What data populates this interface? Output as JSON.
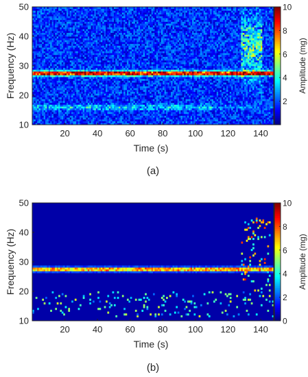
{
  "chart_data": [
    {
      "type": "heatmap",
      "title": "",
      "xlabel": "Time (s)",
      "ylabel": "Frequency (Hz)",
      "colorbar_label": "Amplitude (mg)",
      "colormap": "jet",
      "xlim": [
        0,
        148
      ],
      "ylim": [
        10,
        50
      ],
      "clim": [
        0,
        10
      ],
      "x_ticks": [
        20,
        40,
        60,
        80,
        100,
        120,
        140
      ],
      "y_ticks": [
        10,
        20,
        30,
        40,
        50
      ],
      "colorbar_ticks": [
        2,
        4,
        6,
        8,
        10
      ],
      "time_bins": 148,
      "frequency_bins": 64,
      "grid": false,
      "features": [
        {
          "description": "persistent tonal component",
          "frequency_hz": 27.5,
          "time_range_s": [
            0,
            148
          ],
          "amplitude_mg_range": [
            6,
            10
          ]
        },
        {
          "description": "weaker secondary band",
          "frequency_hz": 16,
          "time_range_s": [
            0,
            100
          ],
          "amplitude_mg_range": [
            3,
            5
          ]
        },
        {
          "description": "broadband transient burst",
          "frequency_hz_range": [
            22,
            45
          ],
          "time_range_s": [
            130,
            140
          ],
          "amplitude_mg_range": [
            3,
            8
          ]
        }
      ],
      "background_amplitude_mg_range": [
        0,
        3
      ],
      "caption": "(a)"
    },
    {
      "type": "heatmap",
      "title": "",
      "xlabel": "Time (s)",
      "ylabel": "Frequency (Hz)",
      "colorbar_label": "Amplitude (mg)",
      "colormap": "jet",
      "xlim": [
        0,
        148
      ],
      "ylim": [
        10,
        50
      ],
      "clim": [
        0,
        10
      ],
      "x_ticks": [
        20,
        40,
        60,
        80,
        100,
        120,
        140
      ],
      "y_ticks": [
        10,
        20,
        30,
        40,
        50
      ],
      "colorbar_ticks": [
        0,
        2,
        4,
        6,
        8,
        10
      ],
      "time_bins": 148,
      "frequency_bins": 64,
      "grid": false,
      "features": [
        {
          "description": "persistent tonal component (denoised)",
          "frequency_hz": 27.5,
          "time_range_s": [
            0,
            148
          ],
          "amplitude_mg_range": [
            6,
            10
          ]
        },
        {
          "description": "sparse residual points",
          "frequency_hz_range": [
            11,
            20
          ],
          "time_range_s": [
            0,
            140
          ],
          "amplitude_mg_range": [
            2,
            6
          ]
        },
        {
          "description": "transient near end",
          "frequency_hz_range": [
            20,
            45
          ],
          "time_range_s": [
            130,
            145
          ],
          "amplitude_mg_range": [
            3,
            9
          ]
        }
      ],
      "background_amplitude_mg_range": [
        0,
        0
      ],
      "caption": "(b)"
    }
  ]
}
